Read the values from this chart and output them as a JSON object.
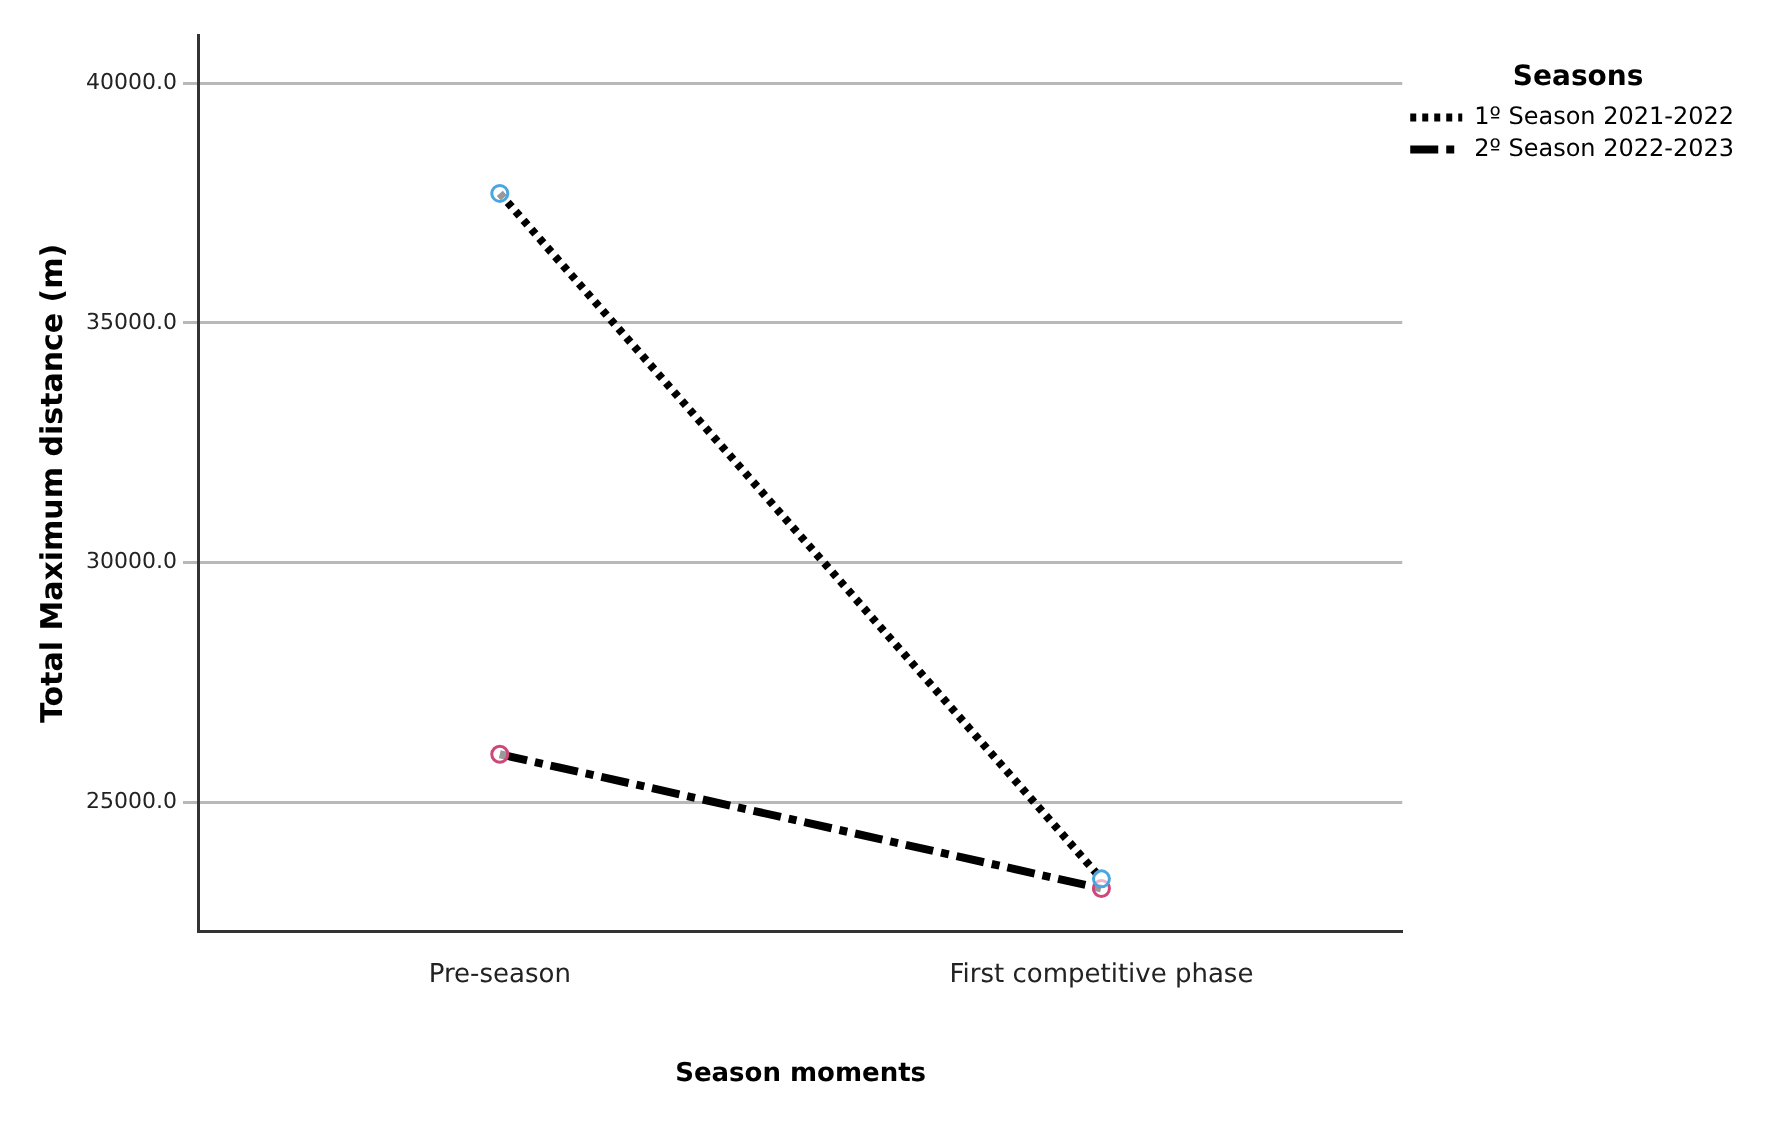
{
  "chart_data": {
    "type": "line",
    "xlabel": "Season moments",
    "ylabel": "Total Maximum distance (m)",
    "legend_title": "Seasons",
    "categories": [
      "Pre-season",
      "First competitive phase"
    ],
    "series": [
      {
        "name": "1º Season 2021-2022",
        "color": "#000000",
        "colors": [
          "#4aa6e0",
          "#4aa6e0"
        ],
        "line_style": "dotted",
        "values": [
          37700,
          23400
        ]
      },
      {
        "name": "2º Season 2022-2023",
        "color": "#000000",
        "colors": [
          "#d0457a",
          "#d0457a"
        ],
        "line_style": "dashed",
        "values": [
          26000,
          23200
        ]
      }
    ],
    "ylim": [
      22300,
      41000
    ],
    "yticks": [
      {
        "value": 25000,
        "label": "25000.0"
      },
      {
        "value": 30000,
        "label": "30000.0"
      },
      {
        "value": 35000,
        "label": "35000.0"
      },
      {
        "value": 40000,
        "label": "40000.0"
      }
    ],
    "grid": "y",
    "marker": "circle",
    "legend": "top right"
  }
}
